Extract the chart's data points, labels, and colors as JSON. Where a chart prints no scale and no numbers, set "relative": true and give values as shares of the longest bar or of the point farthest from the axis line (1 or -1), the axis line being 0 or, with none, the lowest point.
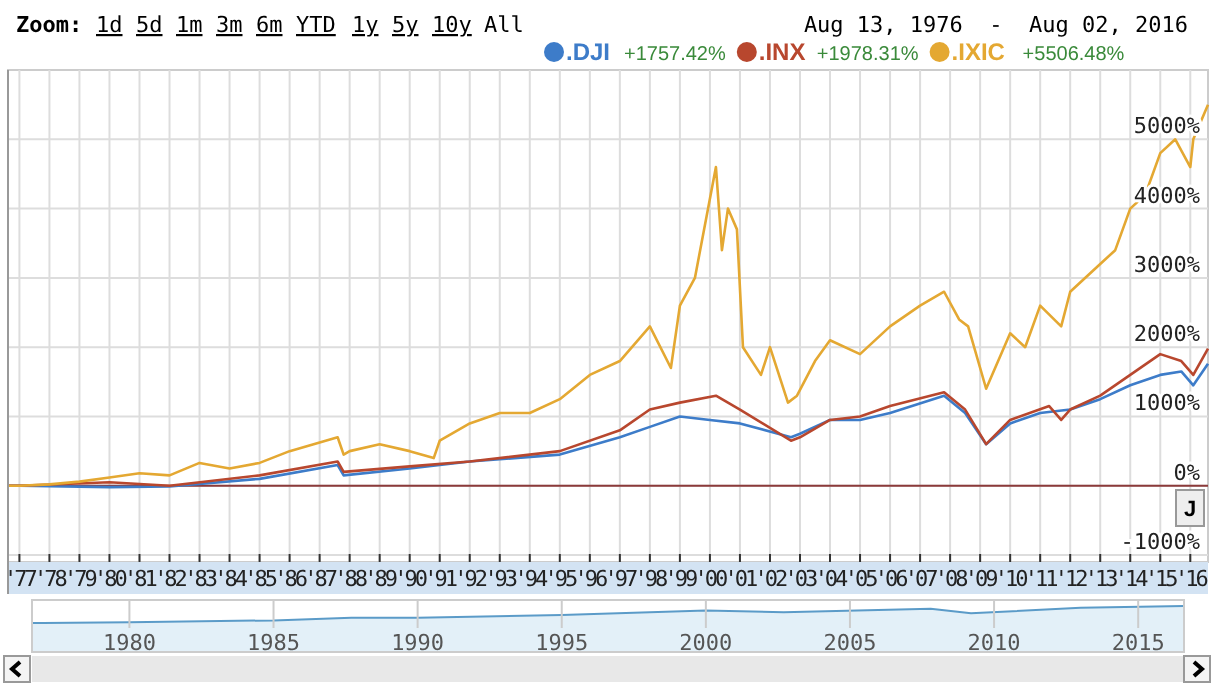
{
  "chart_data": [
    {
      "type": "line",
      "annotations": [
        "Zoom:",
        "1d",
        "5d",
        "1m",
        "3m",
        "6m",
        "YTD",
        "1y",
        "5y",
        "10y",
        "All",
        "Aug 13, 1976  -  Aug 02, 2016",
        "+1757.42%",
        "+1978.31%",
        "+5506.48%",
        "J"
      ],
      "xlim": [
        1976.62,
        2016.59
      ],
      "xticks": [
        {
          "value": 1977,
          "label": "'77"
        },
        {
          "value": 1978,
          "label": "'78"
        },
        {
          "value": 1979,
          "label": "'79"
        },
        {
          "value": 1980,
          "label": "'80"
        },
        {
          "value": 1981,
          "label": "'81"
        },
        {
          "value": 1982,
          "label": "'82"
        },
        {
          "value": 1983,
          "label": "'83"
        },
        {
          "value": 1984,
          "label": "'84"
        },
        {
          "value": 1985,
          "label": "'85"
        },
        {
          "value": 1986,
          "label": "'86"
        },
        {
          "value": 1987,
          "label": "'87"
        },
        {
          "value": 1988,
          "label": "'88"
        },
        {
          "value": 1989,
          "label": "'89"
        },
        {
          "value": 1990,
          "label": "'90"
        },
        {
          "value": 1991,
          "label": "'91"
        },
        {
          "value": 1992,
          "label": "'92"
        },
        {
          "value": 1993,
          "label": "'93"
        },
        {
          "value": 1994,
          "label": "'94"
        },
        {
          "value": 1995,
          "label": "'95"
        },
        {
          "value": 1996,
          "label": "'96"
        },
        {
          "value": 1997,
          "label": "'97"
        },
        {
          "value": 1998,
          "label": "'98"
        },
        {
          "value": 1999,
          "label": "'99"
        },
        {
          "value": 2000,
          "label": "'00"
        },
        {
          "value": 2001,
          "label": "'01"
        },
        {
          "value": 2002,
          "label": "'02"
        },
        {
          "value": 2003,
          "label": "'03"
        },
        {
          "value": 2004,
          "label": "'04"
        },
        {
          "value": 2005,
          "label": "'05"
        },
        {
          "value": 2006,
          "label": "'06"
        },
        {
          "value": 2007,
          "label": "'07"
        },
        {
          "value": 2008,
          "label": "'08"
        },
        {
          "value": 2009,
          "label": "'09"
        },
        {
          "value": 2010,
          "label": "'10"
        },
        {
          "value": 2011,
          "label": "'11"
        },
        {
          "value": 2012,
          "label": "'12"
        },
        {
          "value": 2013,
          "label": "'13"
        },
        {
          "value": 2014,
          "label": "'14"
        },
        {
          "value": 2015,
          "label": "'15"
        },
        {
          "value": 2016,
          "label": "'16"
        }
      ],
      "ylim": [
        -1100,
        6000
      ],
      "yticks": [
        {
          "value": -1000,
          "label": "-1000%"
        },
        {
          "value": 0,
          "label": "0%"
        },
        {
          "value": 1000,
          "label": "1000%"
        },
        {
          "value": 2000,
          "label": "2000%"
        },
        {
          "value": 3000,
          "label": "3000%"
        },
        {
          "value": 4000,
          "label": "4000%"
        },
        {
          "value": 5000,
          "label": "5000%"
        }
      ],
      "grid": true,
      "legend": "top right",
      "ref_lines": [
        {
          "axis": "y",
          "value": 0,
          "color": "#8b3a3a"
        }
      ],
      "series": [
        {
          "name": ".DJI",
          "color": "#3d7cc9",
          "x": [
            1976.62,
            1977,
            1980,
            1982,
            1985,
            1987.6,
            1987.8,
            1990,
            1992,
            1995,
            1997,
            1998,
            1999,
            2000,
            2001,
            2002.7,
            2003,
            2004,
            2005,
            2006,
            2007.8,
            2008.5,
            2009.2,
            2010,
            2011,
            2012,
            2013,
            2014,
            2015,
            2015.7,
            2016.1,
            2016.59
          ],
          "values": [
            0,
            0,
            -20,
            -10,
            100,
            300,
            150,
            250,
            350,
            450,
            700,
            850,
            1000,
            950,
            900,
            700,
            750,
            950,
            950,
            1050,
            1300,
            1050,
            600,
            900,
            1050,
            1100,
            1250,
            1450,
            1600,
            1650,
            1450,
            1760
          ]
        },
        {
          "name": ".INX",
          "color": "#b8472e",
          "x": [
            1976.62,
            1977,
            1980,
            1982,
            1985,
            1987.6,
            1987.8,
            1990,
            1992,
            1995,
            1997,
            1998,
            1999,
            2000.2,
            2001,
            2002.7,
            2003,
            2004,
            2005,
            2006,
            2007.8,
            2008.5,
            2009.2,
            2010,
            2011.3,
            2011.7,
            2012,
            2013,
            2014,
            2015,
            2015.7,
            2016.1,
            2016.59
          ],
          "values": [
            0,
            0,
            50,
            0,
            150,
            350,
            200,
            280,
            350,
            500,
            800,
            1100,
            1200,
            1300,
            1100,
            650,
            700,
            950,
            1000,
            1150,
            1350,
            1100,
            600,
            950,
            1150,
            950,
            1100,
            1300,
            1600,
            1900,
            1800,
            1600,
            1980
          ]
        },
        {
          "name": ".IXIC",
          "color": "#e4a832",
          "x": [
            1976.62,
            1977,
            1978,
            1979,
            1980,
            1981,
            1982,
            1983,
            1984,
            1985,
            1986,
            1987.6,
            1987.8,
            1988,
            1989,
            1990,
            1990.8,
            1991,
            1992,
            1993,
            1994,
            1995,
            1996,
            1997,
            1998,
            1998.7,
            1999,
            1999.5,
            2000.2,
            2000.4,
            2000.6,
            2000.9,
            2001.1,
            2001.7,
            2002,
            2002.6,
            2002.9,
            2003.5,
            2004,
            2005,
            2006,
            2007,
            2007.8,
            2008.3,
            2008.6,
            2009.2,
            2009.6,
            2010,
            2010.5,
            2011,
            2011.7,
            2012,
            2013,
            2013.5,
            2014,
            2014.5,
            2015,
            2015.5,
            2016,
            2016.1,
            2016.59
          ],
          "values": [
            0,
            0,
            20,
            60,
            120,
            180,
            150,
            330,
            250,
            330,
            500,
            700,
            450,
            500,
            600,
            500,
            400,
            650,
            900,
            1050,
            1050,
            1250,
            1600,
            1800,
            2300,
            1700,
            2600,
            3000,
            4600,
            3400,
            4000,
            3700,
            2000,
            1600,
            2000,
            1200,
            1300,
            1800,
            2100,
            1900,
            2300,
            2600,
            2800,
            2400,
            2300,
            1400,
            1800,
            2200,
            2000,
            2600,
            2300,
            2800,
            3200,
            3400,
            4000,
            4200,
            4800,
            5000,
            4600,
            5000,
            5500
          ]
        }
      ]
    },
    {
      "type": "area",
      "relative": true,
      "grid": "x",
      "xlim": [
        1976.62,
        2016.59
      ],
      "xticks": [
        1980,
        1985,
        1990,
        1995,
        2000,
        2005,
        2010,
        2015
      ],
      "series": [
        {
          "color": "#5b9bc8",
          "x": [
            1976.62,
            1977,
            1980,
            1985,
            1987.7,
            1990,
            1995,
            2000,
            2002.7,
            2007.8,
            2009.2,
            2013,
            2016.59
          ],
          "values": [
            0.05,
            0.05,
            0.1,
            0.2,
            0.35,
            0.35,
            0.5,
            0.75,
            0.65,
            0.85,
            0.6,
            0.9,
            1
          ]
        }
      ]
    }
  ]
}
